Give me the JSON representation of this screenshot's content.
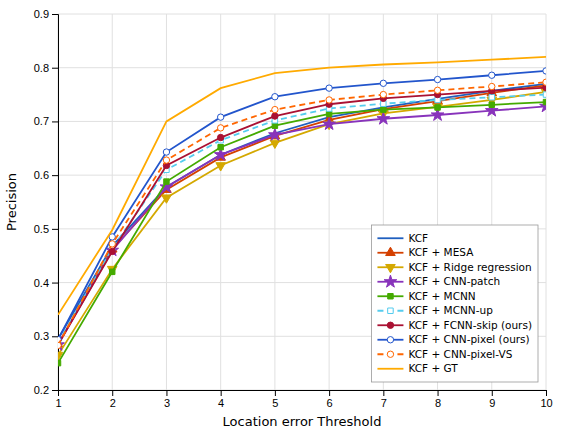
{
  "chart_data": {
    "type": "line",
    "xlabel": "Location error Threshold",
    "ylabel": "Precision",
    "x": [
      1,
      2,
      3,
      4,
      5,
      6,
      7,
      8,
      9,
      10
    ],
    "series": [
      {
        "name": "KCF",
        "color": "#1F5FBF",
        "marker": "none",
        "line_style": "solid",
        "values": [
          0.295,
          0.468,
          0.578,
          0.638,
          0.678,
          0.708,
          0.726,
          0.742,
          0.757,
          0.77
        ]
      },
      {
        "name": "KCF + MESA",
        "color": "#D44000",
        "marker": "triangle-up",
        "line_style": "solid",
        "values": [
          0.285,
          0.462,
          0.573,
          0.633,
          0.673,
          0.703,
          0.723,
          0.738,
          0.753,
          0.767
        ]
      },
      {
        "name": "KCF + Ridge regression",
        "color": "#D4A800",
        "marker": "triangle-down",
        "line_style": "solid",
        "values": [
          0.265,
          0.425,
          0.558,
          0.618,
          0.66,
          0.695,
          0.715,
          0.727,
          0.74,
          0.755
        ]
      },
      {
        "name": "KCF + CNN-patch",
        "color": "#8833BB",
        "marker": "star",
        "line_style": "solid",
        "values": [
          0.284,
          0.46,
          0.578,
          0.638,
          0.675,
          0.695,
          0.705,
          0.712,
          0.72,
          0.728
        ]
      },
      {
        "name": "KCF + MCNN",
        "color": "#44AA00",
        "marker": "square",
        "line_style": "solid",
        "values": [
          0.25,
          0.42,
          0.588,
          0.652,
          0.692,
          0.714,
          0.722,
          0.726,
          0.731,
          0.736
        ]
      },
      {
        "name": "KCF + MCNN-up",
        "color": "#55CCEE",
        "marker": "square-open",
        "line_style": "dashed",
        "values": [
          0.288,
          0.463,
          0.61,
          0.665,
          0.702,
          0.724,
          0.733,
          0.74,
          0.745,
          0.75
        ]
      },
      {
        "name": "KCF + FCNN-skip (ours)",
        "color": "#AA1133",
        "marker": "circle",
        "line_style": "solid",
        "values": [
          0.284,
          0.458,
          0.618,
          0.67,
          0.71,
          0.732,
          0.743,
          0.75,
          0.757,
          0.763
        ]
      },
      {
        "name": "KCF + CNN-pixel (ours)",
        "color": "#2255CC",
        "marker": "circle-open",
        "line_style": "solid",
        "values": [
          0.294,
          0.485,
          0.643,
          0.708,
          0.746,
          0.762,
          0.771,
          0.778,
          0.786,
          0.794
        ]
      },
      {
        "name": "KCF + CNN-pixel-VS",
        "color": "#FF6600",
        "marker": "circle-open",
        "line_style": "dashed",
        "values": [
          0.283,
          0.472,
          0.628,
          0.688,
          0.722,
          0.74,
          0.75,
          0.758,
          0.765,
          0.773
        ]
      },
      {
        "name": "KCF + GT",
        "color": "#FFAA00",
        "marker": "none",
        "line_style": "solid",
        "values": [
          0.34,
          0.498,
          0.7,
          0.762,
          0.79,
          0.8,
          0.806,
          0.81,
          0.815,
          0.82
        ]
      }
    ],
    "xlim": [
      1,
      10
    ],
    "ylim": [
      0.2,
      0.9
    ],
    "xticks": [
      1,
      2,
      3,
      4,
      5,
      6,
      7,
      8,
      9,
      10
    ],
    "yticks": [
      0.2,
      0.3,
      0.4,
      0.5,
      0.6,
      0.7,
      0.8,
      0.9
    ],
    "grid": true,
    "legend": "lower right"
  }
}
